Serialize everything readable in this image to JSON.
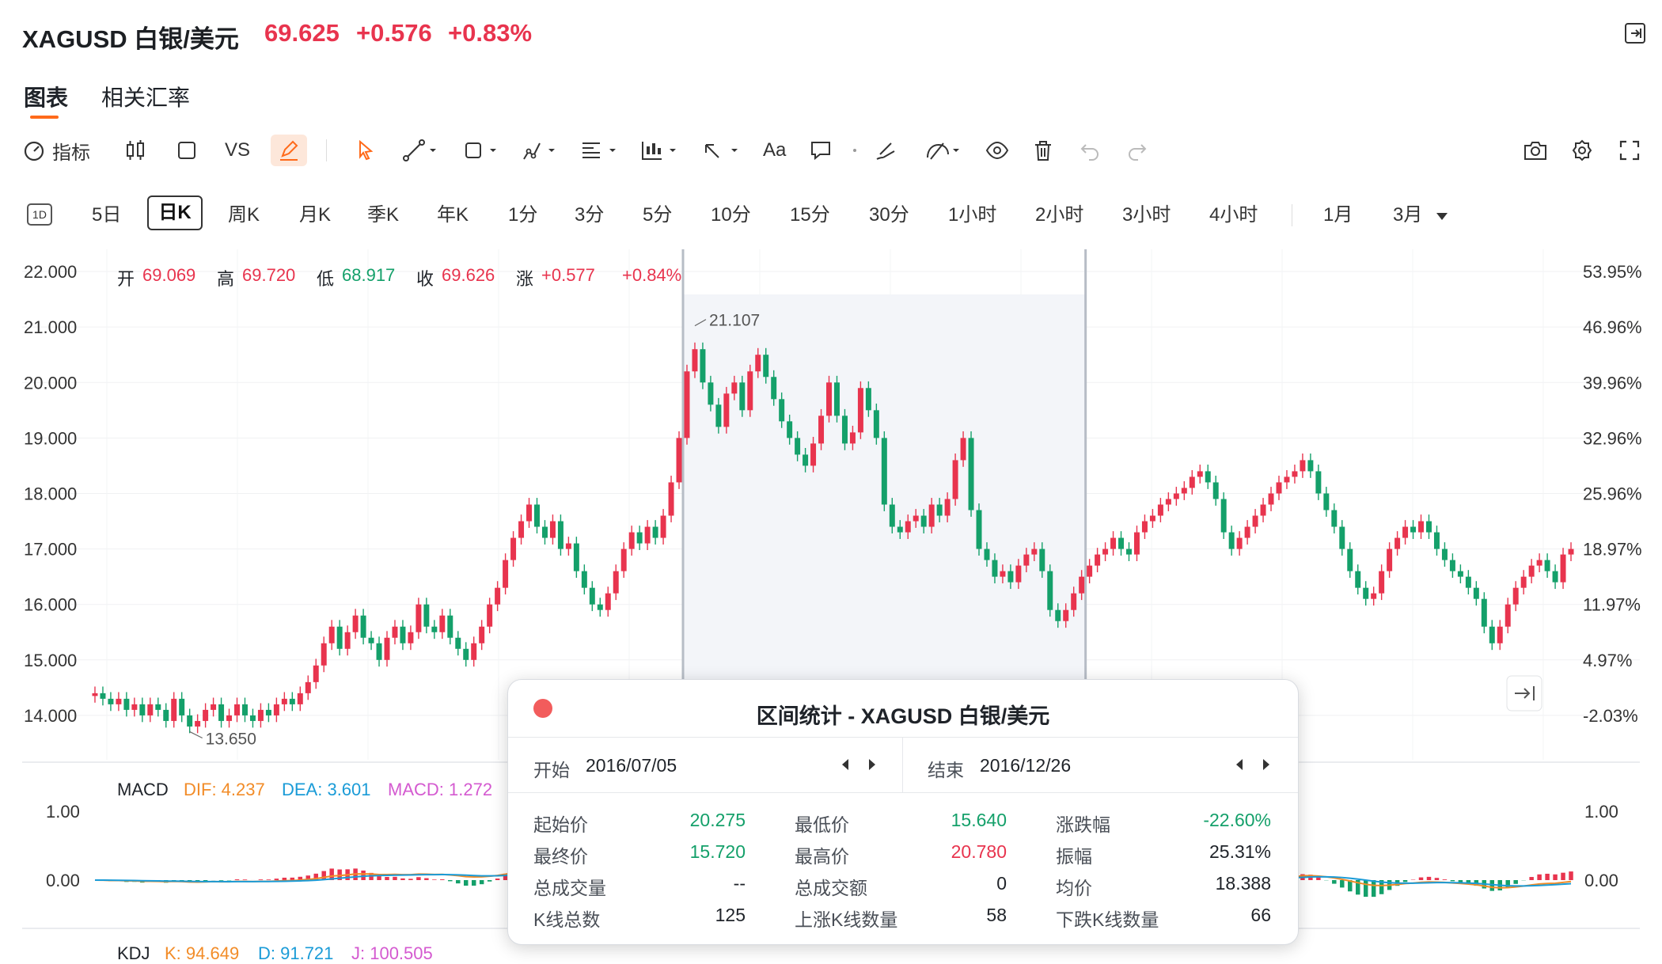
{
  "header": {
    "symbol": "XAGUSD 白银/美元",
    "price": "69.625",
    "change": "+0.576",
    "change_pct": "+0.83%"
  },
  "tabs": [
    {
      "label": "图表"
    },
    {
      "label": "相关汇率"
    }
  ],
  "toolbar": {
    "indicator_label": "指标",
    "vs_label": "VS",
    "text_label": "Aa"
  },
  "periods": [
    "1D",
    "5日",
    "日K",
    "周K",
    "月K",
    "季K",
    "年K",
    "1分",
    "3分",
    "5分",
    "10分",
    "15分",
    "30分",
    "1小时",
    "2小时",
    "3小时",
    "4小时",
    "1月",
    "3月"
  ],
  "ohlc": {
    "open_label": "开",
    "open": "69.069",
    "high_label": "高",
    "high": "69.720",
    "low_label": "低",
    "low": "68.917",
    "close_label": "收",
    "close": "69.626",
    "chg_label": "涨",
    "chg": "+0.577",
    "chg_pct": "+0.84%"
  },
  "macd": {
    "name": "MACD",
    "dif": "DIF: 4.237",
    "dea": "DEA: 3.601",
    "macd": "MACD: 1.272"
  },
  "kdj": {
    "name": "KDJ",
    "k": "K: 94.649",
    "d": "D: 91.721",
    "j": "J: 100.505"
  },
  "chart_data": {
    "type": "candlestick",
    "y_ticks": [
      "22.000",
      "21.000",
      "20.000",
      "19.000",
      "18.000",
      "17.000",
      "16.000",
      "15.000",
      "14.000"
    ],
    "y_ticks_right": [
      "53.95%",
      "46.96%",
      "39.96%",
      "32.96%",
      "25.96%",
      "18.97%",
      "11.97%",
      "4.97%",
      "-2.03%"
    ],
    "macd_ticks": [
      "1.00",
      "0.00"
    ],
    "ylim": [
      13.2,
      22.4
    ],
    "annotations": {
      "high": "21.107",
      "low": "13.650"
    },
    "close_series": [
      14.4,
      14.3,
      14.2,
      14.3,
      14.1,
      14.2,
      14.0,
      14.2,
      14.1,
      13.9,
      14.3,
      14.0,
      13.8,
      13.9,
      14.1,
      14.2,
      13.9,
      14.0,
      14.2,
      14.0,
      13.9,
      14.1,
      14.0,
      14.2,
      14.3,
      14.2,
      14.4,
      14.6,
      14.9,
      15.3,
      15.6,
      15.2,
      15.5,
      15.8,
      15.4,
      15.3,
      15.0,
      15.4,
      15.6,
      15.3,
      15.5,
      16.0,
      15.6,
      15.5,
      15.8,
      15.4,
      15.2,
      15.0,
      15.3,
      15.6,
      16.0,
      16.3,
      16.8,
      17.2,
      17.5,
      17.8,
      17.4,
      17.2,
      17.5,
      17.0,
      17.1,
      16.6,
      16.3,
      16.0,
      15.9,
      16.2,
      16.6,
      17.0,
      17.3,
      17.1,
      17.4,
      17.2,
      17.6,
      18.2,
      19.0,
      20.2,
      20.6,
      20.0,
      19.6,
      19.2,
      19.8,
      20.0,
      19.5,
      20.2,
      20.5,
      20.1,
      19.7,
      19.3,
      19.0,
      18.7,
      18.5,
      18.9,
      19.4,
      20.0,
      19.4,
      18.9,
      19.1,
      19.9,
      19.5,
      19.0,
      17.8,
      17.4,
      17.3,
      17.5,
      17.6,
      17.4,
      17.8,
      17.6,
      17.9,
      18.6,
      19.0,
      17.7,
      17.0,
      16.8,
      16.5,
      16.6,
      16.4,
      16.7,
      16.9,
      17.0,
      16.6,
      15.9,
      15.7,
      15.9,
      16.2,
      16.5,
      16.7,
      16.9,
      17.0,
      17.2,
      17.0,
      16.9,
      17.3,
      17.5,
      17.6,
      17.8,
      17.9,
      18.0,
      18.1,
      18.3,
      18.4,
      18.2,
      17.9,
      17.3,
      17.0,
      17.2,
      17.4,
      17.6,
      17.8,
      18.0,
      18.2,
      18.3,
      18.4,
      18.6,
      18.4,
      18.0,
      17.7,
      17.4,
      17.0,
      16.6,
      16.3,
      16.1,
      16.2,
      16.6,
      17.0,
      17.2,
      17.4,
      17.3,
      17.5,
      17.3,
      17.0,
      16.8,
      16.6,
      16.5,
      16.3,
      16.1,
      15.6,
      15.3,
      15.6,
      16.0,
      16.3,
      16.5,
      16.7,
      16.8,
      16.6,
      16.4,
      16.9,
      17.0
    ],
    "selection": {
      "start": "2016/07/05",
      "end": "2016/12/26"
    }
  },
  "stats": {
    "title": "区间统计 - XAGUSD 白银/美元",
    "start_label": "开始",
    "start_date": "2016/07/05",
    "end_label": "结束",
    "end_date": "2016/12/26",
    "rows": [
      {
        "l1": "起始价",
        "v1": "20.275",
        "l2": "最低价",
        "v2": "15.640",
        "l3": "涨跌幅",
        "v3": "-22.60%"
      },
      {
        "l1": "最终价",
        "v1": "15.720",
        "l2": "最高价",
        "v2": "20.780",
        "l3": "振幅",
        "v3": "25.31%"
      },
      {
        "l1": "总成交量",
        "v1": "--",
        "l2": "总成交额",
        "v2": "0",
        "l3": "均价",
        "v3": "18.388"
      },
      {
        "l1": "K线总数",
        "v1": "125",
        "l2": "上涨K线数量",
        "v2": "58",
        "l3": "下跌K线数量",
        "v3": "66"
      }
    ]
  },
  "colors": {
    "up": "#e8344e",
    "down": "#14a06a",
    "accent": "#ff6a1a"
  }
}
